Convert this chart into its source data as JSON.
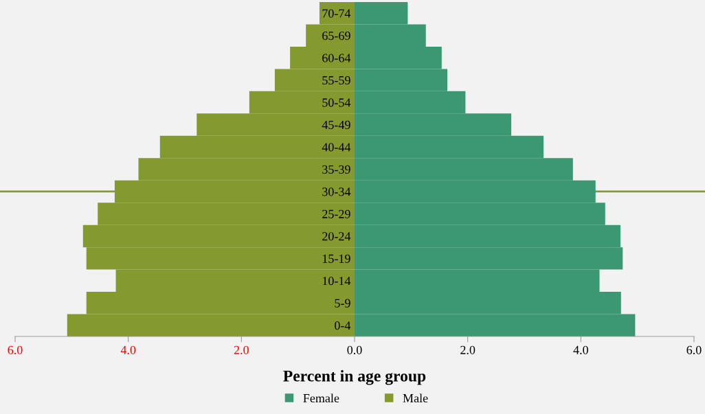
{
  "chart_data": {
    "type": "bar",
    "orientation": "horizontal",
    "stacked": true,
    "xlabel": "Percent in age group",
    "categories": [
      "70-74",
      "65-69",
      "60-64",
      "55-59",
      "50-54",
      "45-49",
      "40-44",
      "35-39",
      "30-34",
      "25-29",
      "20-24",
      "15-19",
      "10-14",
      "5-9",
      "0-4"
    ],
    "series": [
      {
        "name": "Female",
        "color": "#3b9872",
        "values": [
          0.94,
          1.26,
          1.54,
          1.64,
          1.96,
          2.77,
          3.34,
          3.86,
          4.26,
          4.43,
          4.7,
          4.74,
          4.33,
          4.71,
          4.96
        ]
      },
      {
        "name": "Male",
        "color": "#859a2e",
        "values": [
          -0.62,
          -0.86,
          -1.14,
          -1.41,
          -1.86,
          -2.79,
          -3.44,
          -3.82,
          -4.24,
          -4.54,
          -4.8,
          -4.74,
          -4.22,
          -4.74,
          -5.08
        ]
      }
    ],
    "xlim": [
      -6,
      6
    ],
    "xticks": [
      {
        "value": -6,
        "label": "6.0"
      },
      {
        "value": -4,
        "label": "4.0"
      },
      {
        "value": -2,
        "label": "2.0"
      },
      {
        "value": 0,
        "label": "0.0"
      },
      {
        "value": 2,
        "label": "2.0"
      },
      {
        "value": 4,
        "label": "4.0"
      },
      {
        "value": 6,
        "label": "6.0"
      }
    ],
    "ref_lines": [
      {
        "axis": "y",
        "value": "30-34",
        "color": "#859a2e"
      }
    ],
    "legend": "bottom",
    "grid": false
  }
}
